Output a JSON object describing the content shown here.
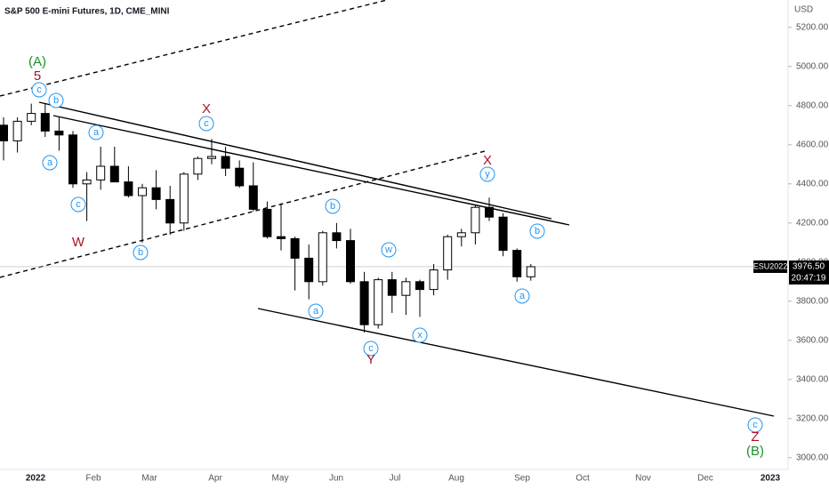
{
  "chart_data": {
    "type": "candlestick",
    "title": "S&P 500 E-mini Futures, 1D, CME_MINI",
    "currency": "USD",
    "x_labels": [
      "2022",
      "Feb",
      "Mar",
      "Apr",
      "May",
      "Jun",
      "Jul",
      "Aug",
      "Sep",
      "Oct",
      "Nov",
      "Dec",
      "2023"
    ],
    "open": [
      4700,
      4620,
      4720,
      4760,
      4670,
      4650,
      4400,
      4420,
      4490,
      4410,
      4340,
      4380,
      4320,
      4200,
      4450,
      4530,
      4540,
      4480,
      4390,
      4270,
      4130,
      4120,
      4020,
      3900,
      4150,
      4110,
      3900,
      3680,
      3910,
      3830,
      3900,
      3860,
      3960,
      4130,
      4150,
      4280,
      4230,
      4060,
      3925
    ],
    "high": [
      4740,
      4740,
      4810,
      4810,
      4740,
      4670,
      4460,
      4590,
      4590,
      4490,
      4400,
      4470,
      4390,
      4460,
      4540,
      4630,
      4590,
      4520,
      4510,
      4310,
      4300,
      4130,
      4090,
      4160,
      4200,
      4170,
      3950,
      3920,
      3950,
      3920,
      3910,
      3990,
      4140,
      4170,
      4290,
      4330,
      4250,
      4070,
      3990
    ],
    "low": [
      4520,
      4560,
      4700,
      4640,
      4570,
      4380,
      4210,
      4370,
      4410,
      4330,
      4100,
      4270,
      4140,
      4160,
      4420,
      4500,
      4440,
      4380,
      4260,
      4120,
      4060,
      3855,
      3810,
      3880,
      4070,
      3890,
      3640,
      3660,
      3740,
      3730,
      3720,
      3830,
      3910,
      4080,
      4090,
      4210,
      4030,
      3900,
      3905
    ],
    "close": [
      4620,
      4720,
      4760,
      4670,
      4650,
      4400,
      4420,
      4490,
      4410,
      4340,
      4380,
      4320,
      4200,
      4450,
      4530,
      4540,
      4480,
      4390,
      4270,
      4130,
      4120,
      4020,
      3900,
      4150,
      4110,
      3900,
      3680,
      3910,
      3830,
      3900,
      3860,
      3960,
      4130,
      4150,
      4280,
      4230,
      4060,
      3925,
      3976.5
    ],
    "ylim": [
      2940,
      5340
    ],
    "yticks": [
      {
        "value": 3000,
        "label": "3000.00"
      },
      {
        "value": 3200,
        "label": "3200.00"
      },
      {
        "value": 3400,
        "label": "3400.00"
      },
      {
        "value": 3600,
        "label": "3600.00"
      },
      {
        "value": 3800,
        "label": "3800.00"
      },
      {
        "value": 4000,
        "label": "4000.00"
      },
      {
        "value": 4200,
        "label": "4200.00"
      },
      {
        "value": 4400,
        "label": "4400.00"
      },
      {
        "value": 4600,
        "label": "4600.00"
      },
      {
        "value": 4800,
        "label": "4800.00"
      },
      {
        "value": 5000,
        "label": "5000.00"
      },
      {
        "value": 5200,
        "label": "5200.00"
      }
    ],
    "price_tag": {
      "symbol": "ESU2022",
      "value": 3976.5,
      "label": "3976.50",
      "countdown": "20:47:19"
    },
    "annotations": [
      "(A)",
      "5",
      "c",
      "b",
      "X",
      "c",
      "a",
      "a",
      "c",
      "W",
      "b",
      "b",
      "w",
      "a",
      "c",
      "Y",
      "x",
      "X",
      "y",
      "b",
      "a",
      "c",
      "Z",
      "(B)"
    ]
  }
}
